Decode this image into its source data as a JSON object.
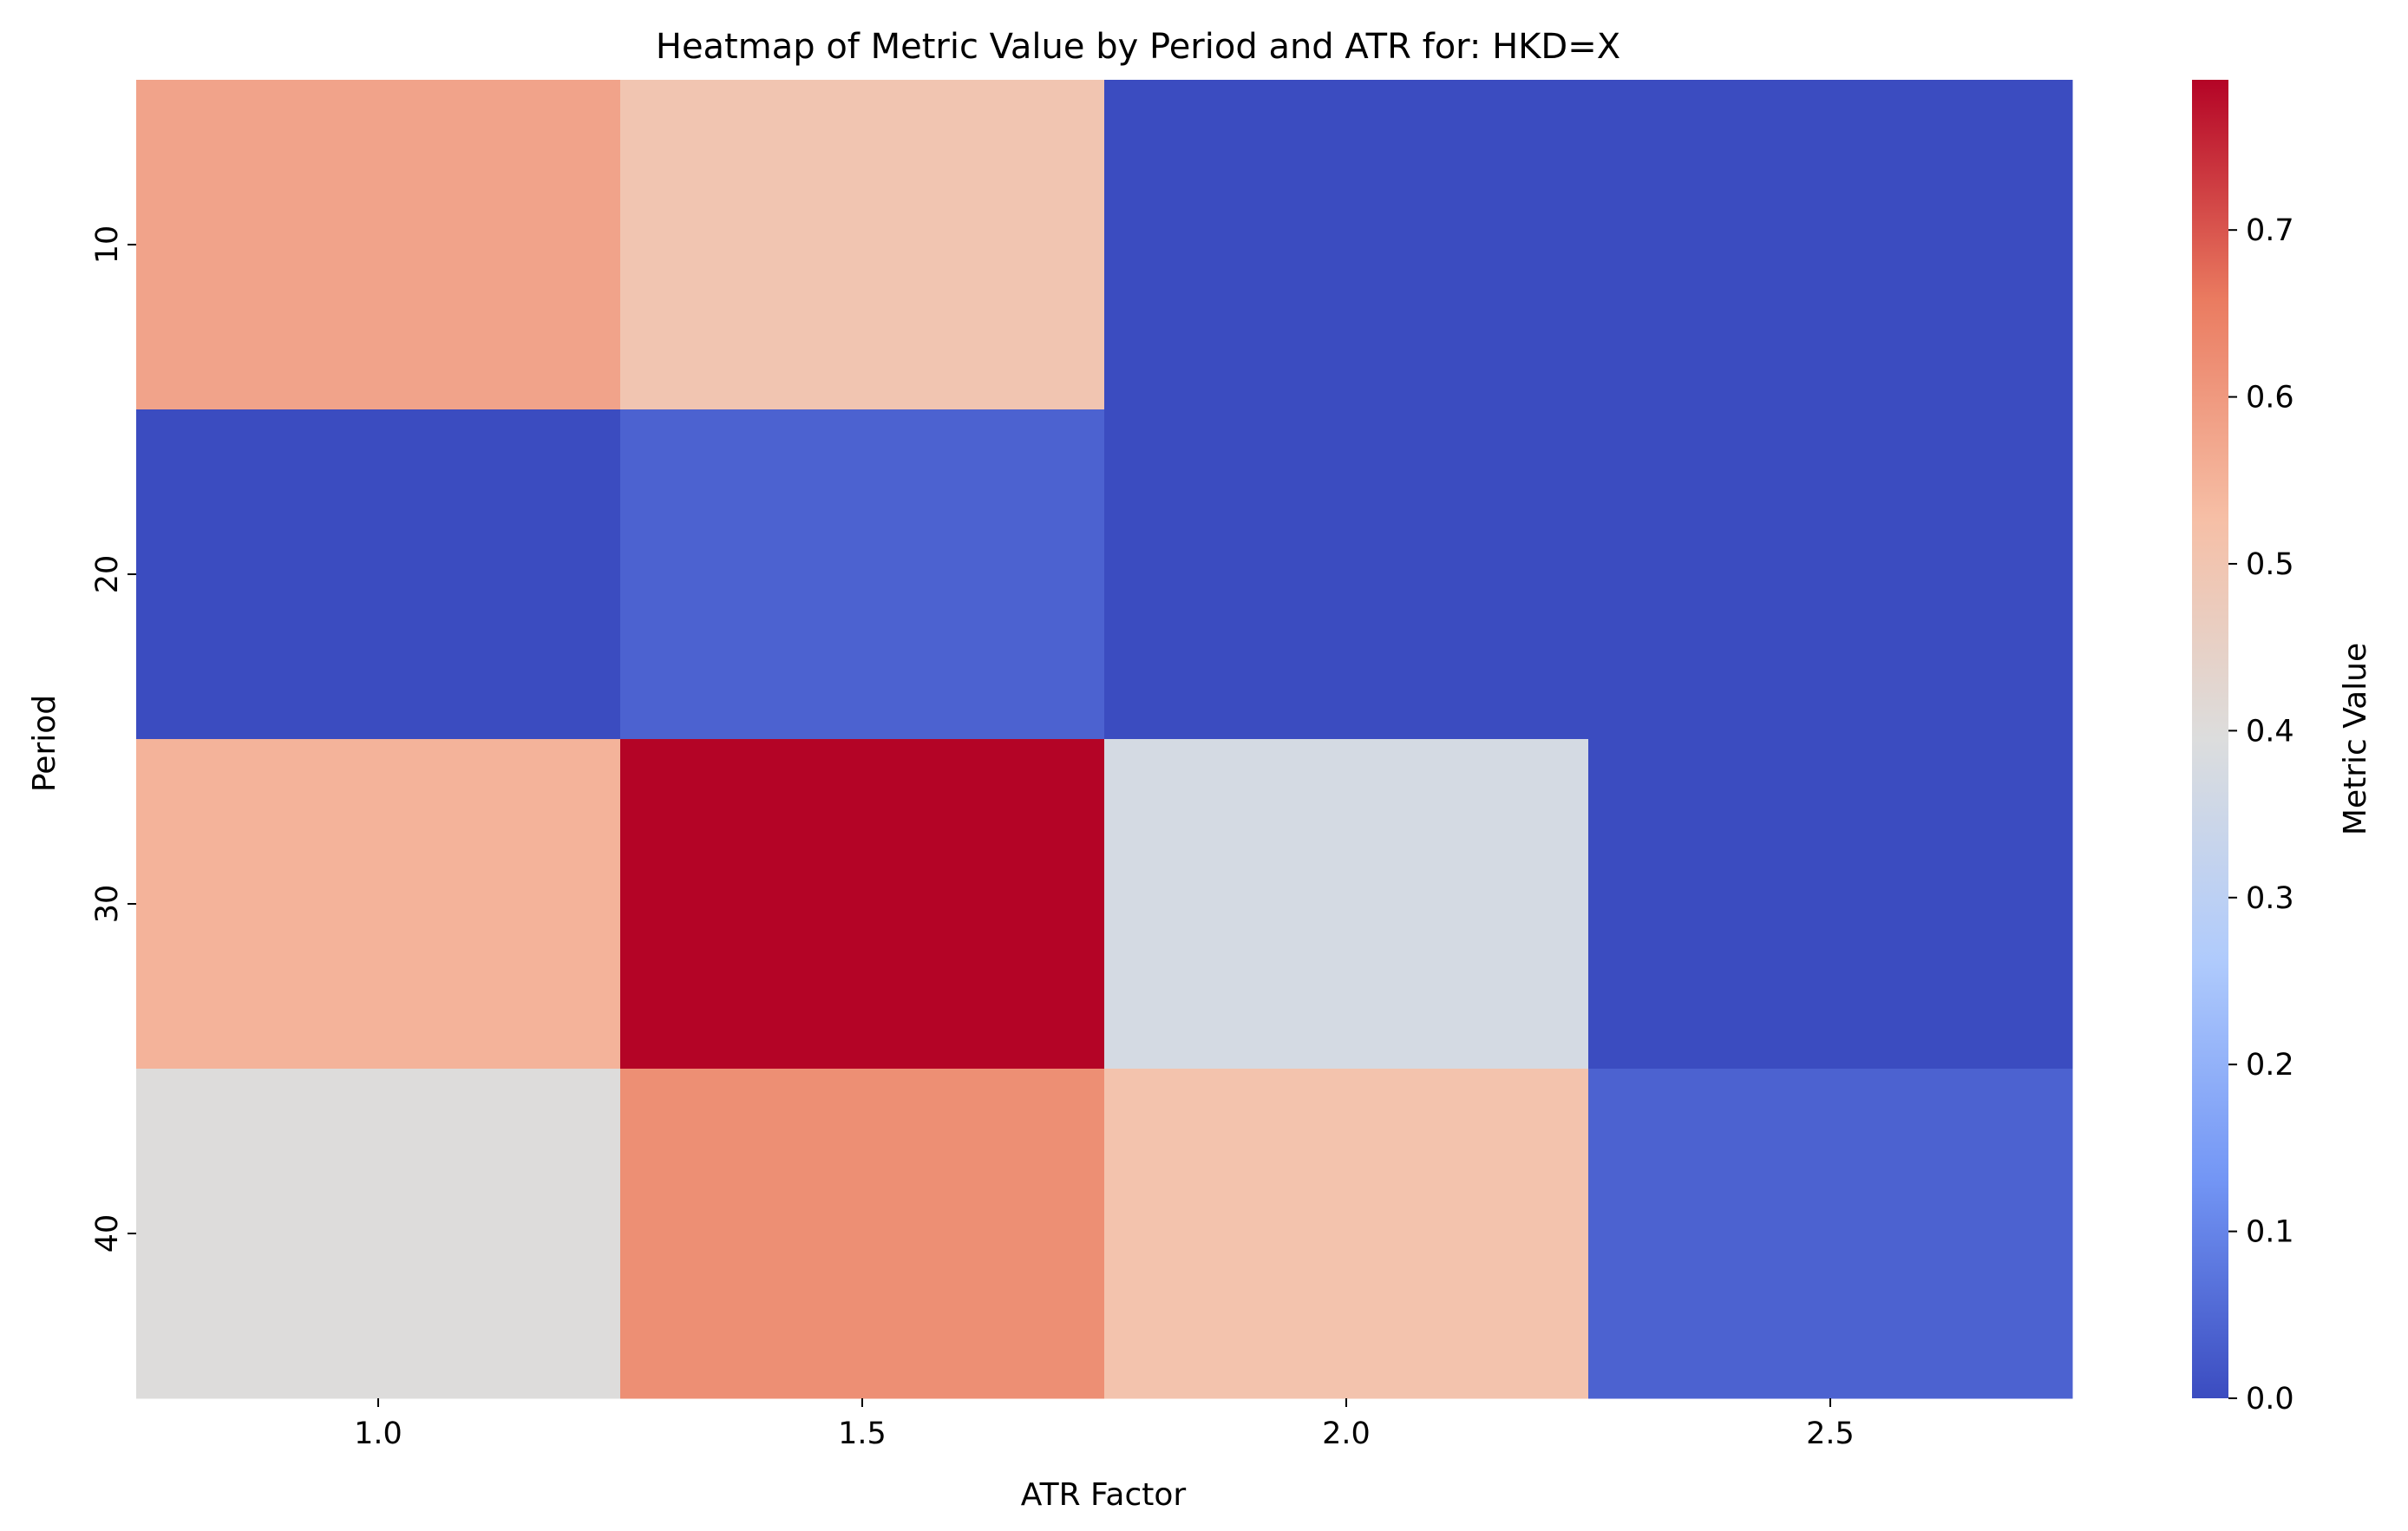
{
  "chart_data": {
    "type": "heatmap",
    "title": "Heatmap of Metric Value by Period and ATR for: HKD=X",
    "xlabel": "ATR Factor",
    "ylabel": "Period",
    "x_categories": [
      "1.0",
      "1.5",
      "2.0",
      "2.5"
    ],
    "y_categories": [
      "10",
      "20",
      "30",
      "40"
    ],
    "values": [
      [
        0.58,
        0.5,
        0.0,
        0.0
      ],
      [
        0.0,
        0.04,
        0.0,
        0.0
      ],
      [
        0.55,
        0.79,
        0.37,
        0.0
      ],
      [
        0.4,
        0.62,
        0.51,
        0.04
      ]
    ],
    "colorbar": {
      "label": "Metric Value",
      "min": 0.0,
      "max": 0.79,
      "ticks": [
        "0.0",
        "0.1",
        "0.2",
        "0.3",
        "0.4",
        "0.5",
        "0.6",
        "0.7"
      ],
      "colormap": "coolwarm",
      "colors": [
        "#3b4cc0",
        "#7396f5",
        "#b0cbfc",
        "#dcdddd",
        "#f6bfa6",
        "#ea7b60",
        "#b40426"
      ]
    }
  }
}
